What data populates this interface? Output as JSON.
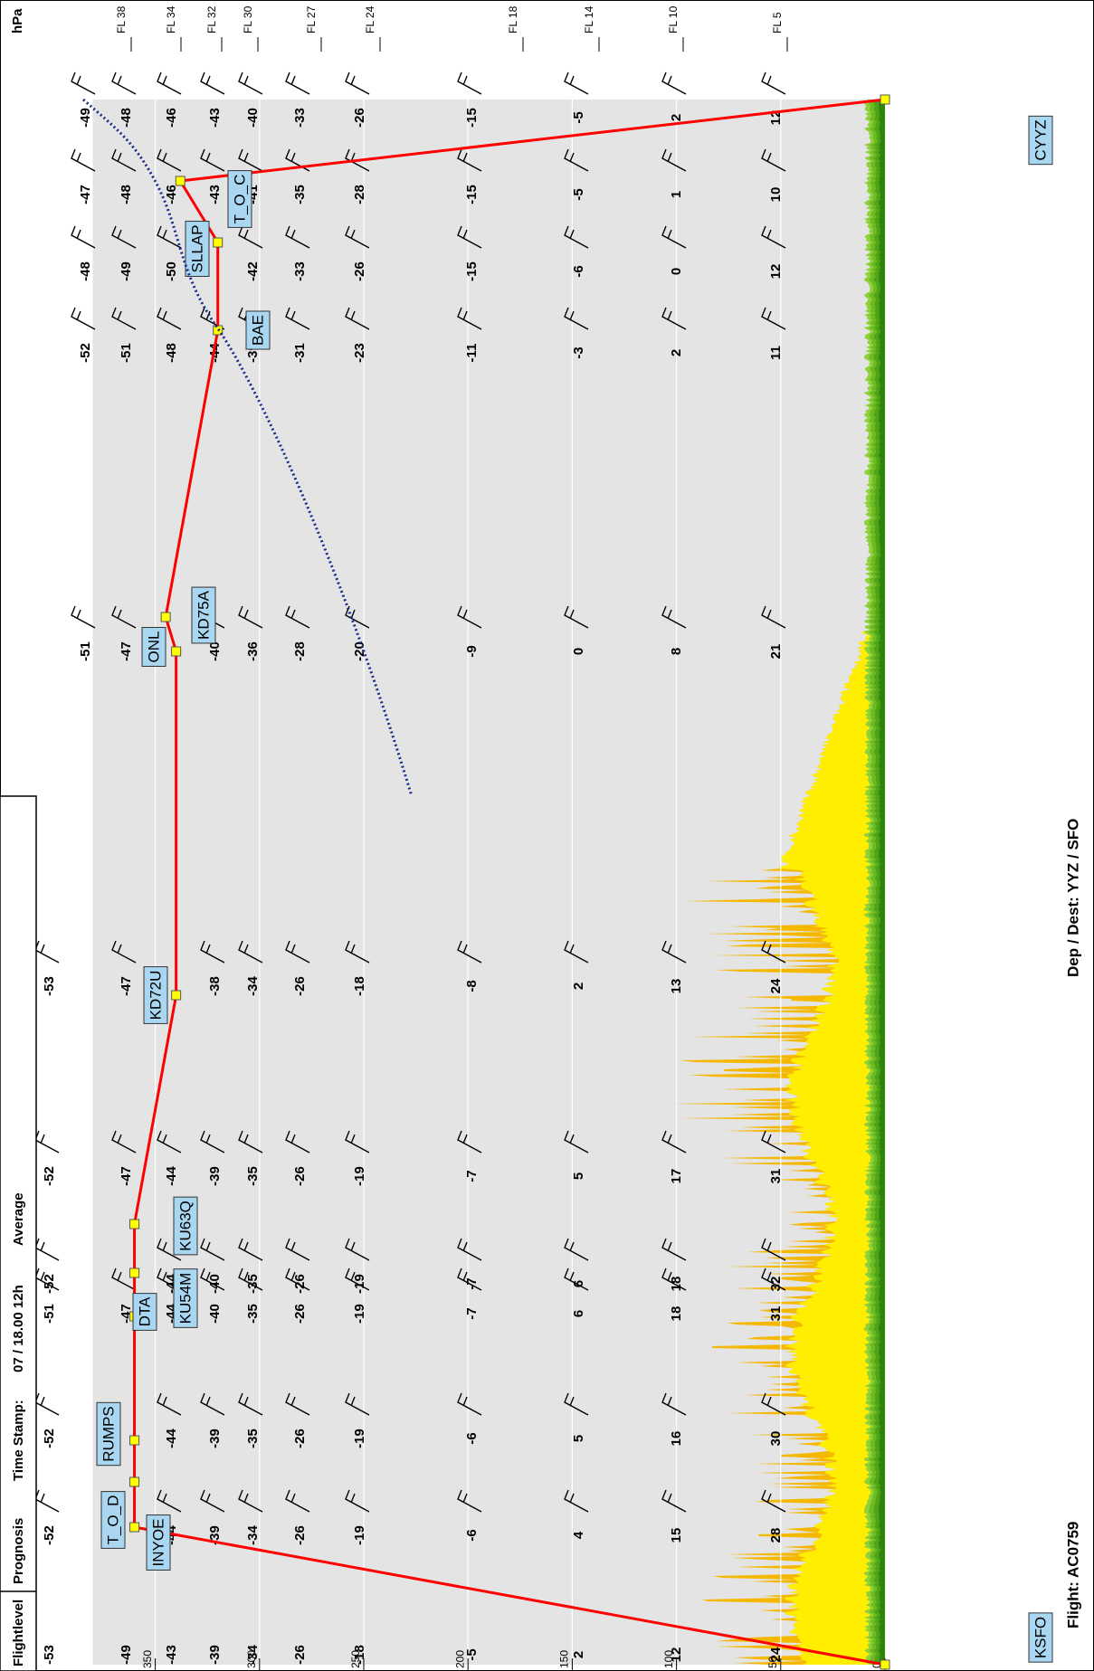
{
  "header": {
    "axis_title": "Flightlevel",
    "tabs": [
      "Prognosis",
      "Time Stamp:",
      "07 / 18.00 12h",
      "Average"
    ],
    "level_unit": "hPa"
  },
  "footer": {
    "flight": "Flight: AC0759",
    "route": "Dep / Dest: YYZ / SFO"
  },
  "chart_data": {
    "type": "line",
    "categories": [
      "KSFO",
      "T_O_D",
      "INYOE",
      "RUMPS",
      "DTA",
      "KU54M",
      "KU63Q",
      "KD72U",
      "ONL",
      "KD75A",
      "BAE",
      "SLLAP",
      "T_O_C",
      "CYYZ"
    ],
    "values": [
      0,
      360,
      360,
      360,
      360,
      360,
      360,
      340,
      340,
      345,
      320,
      320,
      338,
      0
    ],
    "color": "#ff0000",
    "marker_color": "#ffff00",
    "ylim": [
      0,
      380
    ],
    "yticks": [
      0,
      50,
      100,
      150,
      200,
      250,
      300,
      350
    ],
    "grid": true,
    "level_labels": [
      "FL 38",
      "FL 34",
      "FL 32",
      "FL 30",
      "FL 27",
      "FL 24",
      "FL 18",
      "FL 14",
      "FL 10",
      "FL 5"
    ],
    "temperature_columns": [
      [
        -53,
        -49,
        -43,
        -39,
        -34,
        -26,
        -18,
        -5,
        2,
        12,
        24
      ],
      [
        -52,
        null,
        -44,
        -39,
        -34,
        -26,
        -19,
        -6,
        4,
        15,
        28
      ],
      [
        -52,
        null,
        -44,
        -39,
        -35,
        -26,
        -19,
        -6,
        5,
        16,
        30
      ],
      [
        -51,
        -47,
        -44,
        -40,
        -35,
        -26,
        -19,
        -7,
        6,
        18,
        31
      ],
      [
        -52,
        null,
        -44,
        -40,
        -35,
        -26,
        -19,
        -7,
        6,
        18,
        32
      ],
      [
        -52,
        -47,
        -44,
        -39,
        -35,
        -26,
        -19,
        -7,
        5,
        17,
        31
      ],
      [
        -53,
        -47,
        null,
        -38,
        -34,
        -26,
        -18,
        -8,
        2,
        13,
        24
      ],
      [
        -51,
        -47,
        null,
        -40,
        -36,
        -28,
        -20,
        -9,
        0,
        8,
        21
      ],
      [
        -52,
        -51,
        -48,
        -44,
        -39,
        -31,
        -23,
        -11,
        -3,
        2,
        11
      ],
      [
        -48,
        -49,
        -50,
        null,
        -42,
        -33,
        -26,
        -15,
        -6,
        0,
        12
      ],
      [
        -47,
        -48,
        -46,
        -43,
        -41,
        -35,
        -28,
        -15,
        -5,
        1,
        10
      ],
      [
        -49,
        -48,
        -46,
        -43,
        -40,
        -33,
        -26,
        -15,
        -5,
        2,
        12
      ]
    ]
  }
}
